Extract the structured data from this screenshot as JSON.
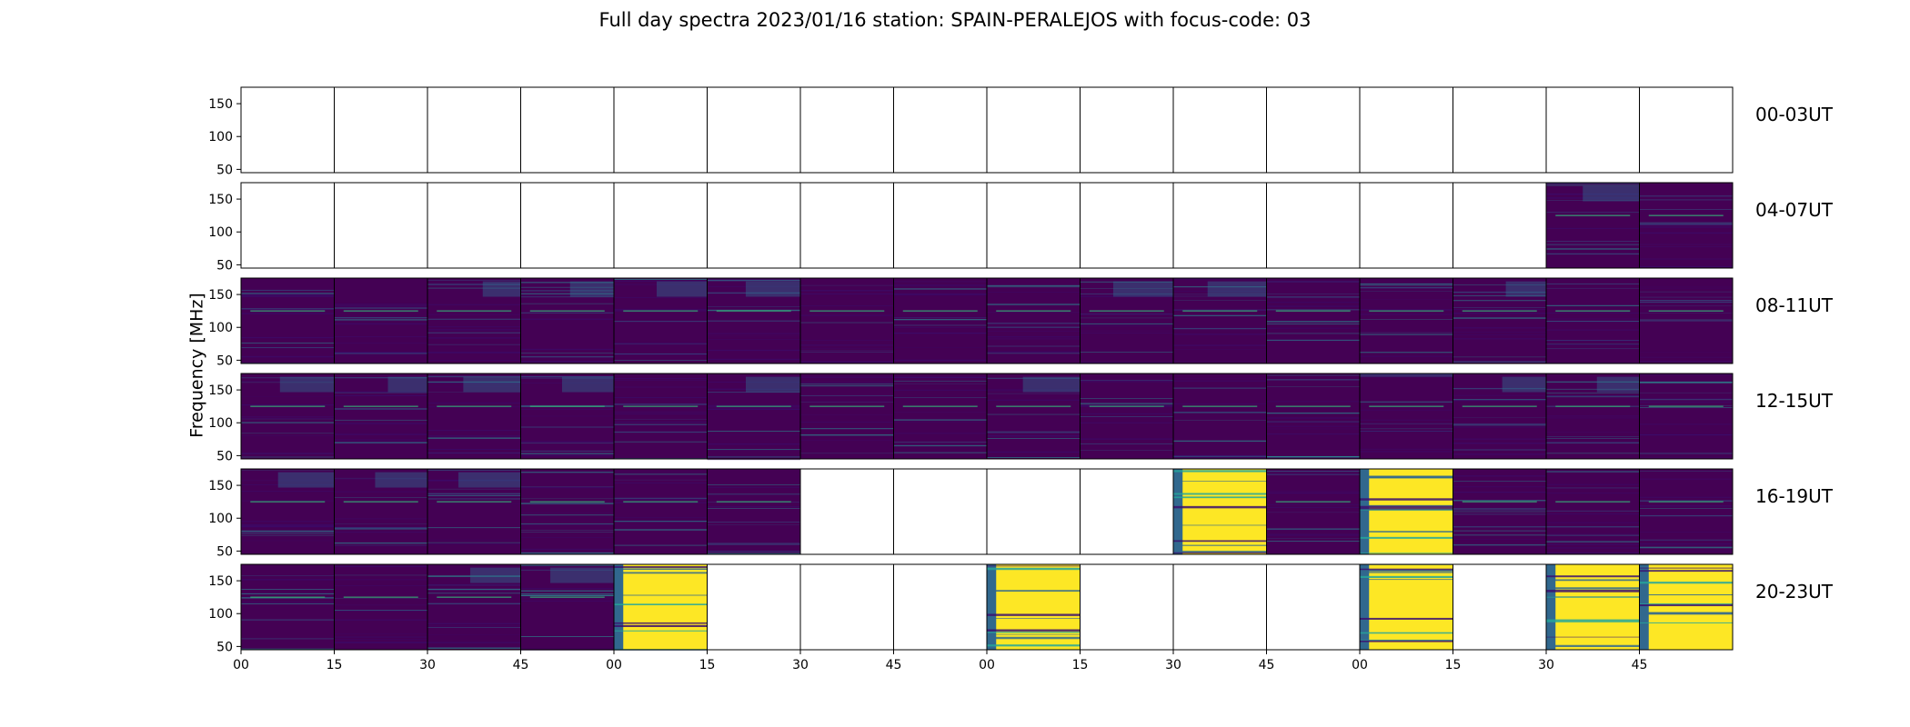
{
  "figure": {
    "title": "Full day spectra 2023/01/16 station: SPAIN-PERALEJOS with focus-code: 03"
  },
  "chart_data": {
    "type": "heatmap",
    "title": "Full day spectra 2023/01/16 station: SPAIN-PERALEJOS with focus-code: 03",
    "xlabel": "",
    "ylabel": "Frequency [MHz]",
    "ylim": [
      45,
      175
    ],
    "yticks": [
      50,
      100,
      150
    ],
    "xticks": [
      "00",
      "15",
      "30",
      "45",
      "00",
      "15",
      "30",
      "45",
      "00",
      "15",
      "30",
      "45",
      "00",
      "15",
      "30",
      "45"
    ],
    "row_labels": [
      "00-03UT",
      "04-07UT",
      "08-11UT",
      "12-15UT",
      "16-19UT",
      "20-23UT"
    ],
    "panel_minutes": 15,
    "colors": {
      "background": "#440154",
      "deep": "#3b0f70",
      "mid": "#31688e",
      "teal": "#26a69a",
      "green": "#35b779",
      "yellow": "#fde725",
      "frame": "#000000"
    },
    "rows": [
      [
        "empty",
        "empty",
        "empty",
        "empty",
        "empty",
        "empty",
        "empty",
        "empty",
        "empty",
        "empty",
        "empty",
        "empty",
        "empty",
        "empty",
        "empty",
        "empty"
      ],
      [
        "empty",
        "empty",
        "empty",
        "empty",
        "empty",
        "empty",
        "empty",
        "empty",
        "empty",
        "empty",
        "empty",
        "empty",
        "empty",
        "empty",
        "normal",
        "normal"
      ],
      [
        "normal",
        "normal",
        "normal",
        "normal",
        "normal",
        "normal",
        "normal",
        "normal",
        "normal",
        "normal",
        "normal",
        "normal",
        "normal",
        "normal",
        "normal",
        "normal"
      ],
      [
        "normal",
        "normal",
        "normal",
        "normal",
        "normal",
        "normal",
        "normal",
        "normal",
        "normal",
        "normal",
        "normal",
        "normal",
        "normal",
        "normal",
        "normal",
        "normal"
      ],
      [
        "normal",
        "normal",
        "normal",
        "normal",
        "normal",
        "normal",
        "empty",
        "empty",
        "empty",
        "empty",
        "storm",
        "normal",
        "storm",
        "normal",
        "normal",
        "normal"
      ],
      [
        "normal",
        "normal",
        "normal",
        "normal",
        "storm",
        "empty",
        "empty",
        "empty",
        "storm",
        "empty",
        "empty",
        "empty",
        "storm",
        "empty",
        "storm",
        "storm"
      ]
    ]
  }
}
